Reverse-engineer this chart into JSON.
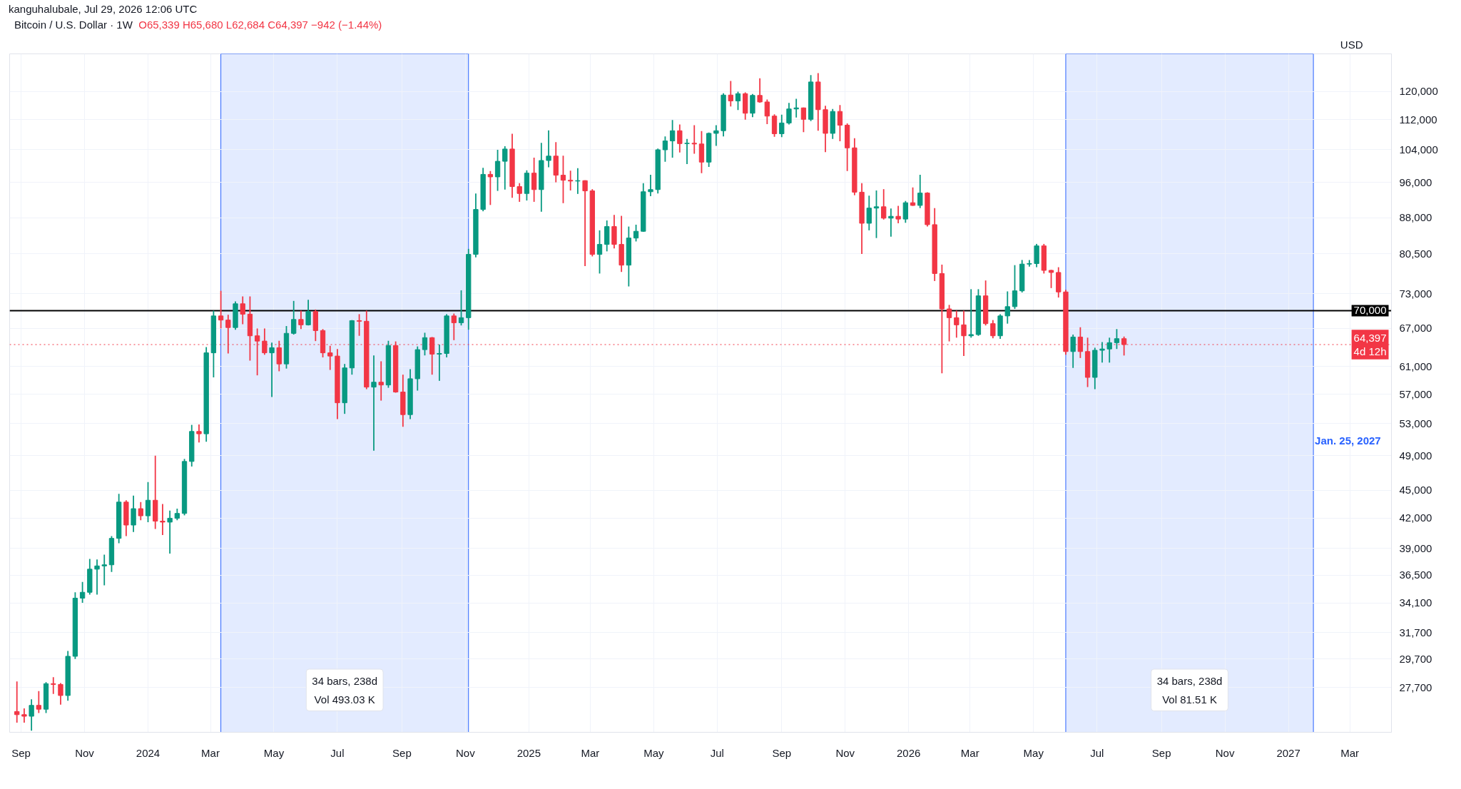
{
  "chart_data": {
    "type": "candlestick",
    "title": "Bitcoin / U.S. Dollar · 1W",
    "ylabel": "USD",
    "annotations": [
      "kanguhalubale, Jul 29, 2026 12:06 UTC",
      "O65,339 H65,680 L62,684 C64,397 −942 (−1.44%)",
      {
        "text": "Jan. 25, 2027",
        "x": "2027-01-25",
        "y": 52500
      }
    ],
    "x": [
      "2023-08-28",
      "2023-09-04",
      "2023-09-11",
      "2023-09-18",
      "2023-09-25",
      "2023-10-02",
      "2023-10-09",
      "2023-10-16",
      "2023-10-23",
      "2023-10-30",
      "2023-11-06",
      "2023-11-13",
      "2023-11-20",
      "2023-11-27",
      "2023-12-04",
      "2023-12-11",
      "2023-12-18",
      "2023-12-25",
      "2024-01-01",
      "2024-01-08",
      "2024-01-15",
      "2024-01-22",
      "2024-01-29",
      "2024-02-05",
      "2024-02-12",
      "2024-02-19",
      "2024-02-26",
      "2024-03-04",
      "2024-03-11",
      "2024-03-18",
      "2024-03-25",
      "2024-04-01",
      "2024-04-08",
      "2024-04-15",
      "2024-04-22",
      "2024-04-29",
      "2024-05-06",
      "2024-05-13",
      "2024-05-20",
      "2024-05-27",
      "2024-06-03",
      "2024-06-10",
      "2024-06-17",
      "2024-06-24",
      "2024-07-01",
      "2024-07-08",
      "2024-07-15",
      "2024-07-22",
      "2024-07-29",
      "2024-08-05",
      "2024-08-12",
      "2024-08-19",
      "2024-08-26",
      "2024-09-02",
      "2024-09-09",
      "2024-09-16",
      "2024-09-23",
      "2024-09-30",
      "2024-10-07",
      "2024-10-14",
      "2024-10-21",
      "2024-10-28",
      "2024-11-04",
      "2024-11-11",
      "2024-11-18",
      "2024-11-25",
      "2024-12-02",
      "2024-12-09",
      "2024-12-16",
      "2024-12-23",
      "2024-12-30",
      "2025-01-06",
      "2025-01-13",
      "2025-01-20",
      "2025-01-27",
      "2025-02-03",
      "2025-02-10",
      "2025-02-17",
      "2025-02-24",
      "2025-03-03",
      "2025-03-10",
      "2025-03-17",
      "2025-03-24",
      "2025-03-31",
      "2025-04-07",
      "2025-04-14",
      "2025-04-21",
      "2025-04-28",
      "2025-05-05",
      "2025-05-12",
      "2025-05-19",
      "2025-05-26",
      "2025-06-02",
      "2025-06-09",
      "2025-06-16",
      "2025-06-23",
      "2025-06-30",
      "2025-07-07",
      "2025-07-14",
      "2025-07-21",
      "2025-07-28",
      "2025-08-04",
      "2025-08-11",
      "2025-08-18",
      "2025-08-25",
      "2025-09-01",
      "2025-09-08",
      "2025-09-15",
      "2025-09-22",
      "2025-09-29",
      "2025-10-06",
      "2025-10-13",
      "2025-10-20",
      "2025-10-27",
      "2025-11-03",
      "2025-11-10",
      "2025-11-17",
      "2025-11-24",
      "2025-12-01",
      "2025-12-08",
      "2025-12-15",
      "2025-12-22",
      "2025-12-29",
      "2026-01-05",
      "2026-01-12",
      "2026-01-19",
      "2026-01-26",
      "2026-02-02",
      "2026-02-09",
      "2026-02-16",
      "2026-02-23",
      "2026-03-02",
      "2026-03-09",
      "2026-03-16",
      "2026-03-23",
      "2026-03-30",
      "2026-04-06",
      "2026-04-13",
      "2026-04-20",
      "2026-04-27",
      "2026-05-04",
      "2026-05-11",
      "2026-05-18",
      "2026-05-25",
      "2026-06-01",
      "2026-06-08",
      "2026-06-15",
      "2026-06-22",
      "2026-06-29",
      "2026-07-06",
      "2026-07-13",
      "2026-07-20",
      "2026-07-27"
    ],
    "ohlc": [
      [
        26100,
        28100,
        25400,
        25900
      ],
      [
        25900,
        26300,
        25400,
        25800
      ],
      [
        25800,
        26900,
        24900,
        26500
      ],
      [
        26500,
        27450,
        26000,
        26250
      ],
      [
        26250,
        28050,
        26000,
        27950
      ],
      [
        27950,
        28400,
        27250,
        27900
      ],
      [
        27900,
        28000,
        26550,
        27150
      ],
      [
        27150,
        30300,
        26800,
        29900
      ],
      [
        29900,
        35000,
        29700,
        34500
      ],
      [
        34500,
        35900,
        34100,
        35000
      ],
      [
        35000,
        38000,
        34800,
        37050
      ],
      [
        37050,
        37950,
        34800,
        37350
      ],
      [
        37350,
        38400,
        35600,
        37450
      ],
      [
        37450,
        40200,
        36800,
        39970
      ],
      [
        39970,
        44600,
        39500,
        43700
      ],
      [
        43700,
        43900,
        40200,
        41300
      ],
      [
        41300,
        44400,
        40600,
        43000
      ],
      [
        43000,
        43700,
        41800,
        42250
      ],
      [
        42250,
        45900,
        41600,
        43900
      ],
      [
        43900,
        49000,
        40900,
        41700
      ],
      [
        41700,
        43500,
        40300,
        41600
      ],
      [
        41600,
        42800,
        38500,
        42000
      ],
      [
        42000,
        43000,
        41800,
        42500
      ],
      [
        42500,
        48600,
        42300,
        48300
      ],
      [
        48300,
        52850,
        47700,
        52000
      ],
      [
        52000,
        52900,
        50600,
        51700
      ],
      [
        51700,
        64000,
        50700,
        63100
      ],
      [
        63100,
        70000,
        59400,
        69100
      ],
      [
        69100,
        73500,
        67000,
        68400
      ],
      [
        68400,
        69300,
        63000,
        67150
      ],
      [
        67150,
        71600,
        66800,
        71200
      ],
      [
        71200,
        72500,
        67700,
        69400
      ],
      [
        69400,
        72500,
        61900,
        65800
      ],
      [
        65800,
        67000,
        59700,
        64950
      ],
      [
        64950,
        67000,
        62800,
        63100
      ],
      [
        63100,
        64700,
        56600,
        63900
      ],
      [
        63900,
        65000,
        60300,
        61400
      ],
      [
        61400,
        67400,
        60700,
        66200
      ],
      [
        66200,
        71700,
        66000,
        68500
      ],
      [
        68500,
        70000,
        66900,
        67600
      ],
      [
        67600,
        71900,
        67500,
        69850
      ],
      [
        69850,
        70200,
        64950,
        66650
      ],
      [
        66650,
        66900,
        62400,
        63100
      ],
      [
        63100,
        64200,
        60500,
        62600
      ],
      [
        62600,
        63700,
        53600,
        55800
      ],
      [
        55800,
        61400,
        54300,
        60800
      ],
      [
        60800,
        68400,
        59800,
        68300
      ],
      [
        68300,
        69400,
        65800,
        68200
      ],
      [
        68200,
        70000,
        57700,
        58000
      ],
      [
        58000,
        62700,
        49600,
        58700
      ],
      [
        58700,
        61800,
        56100,
        58300
      ],
      [
        58300,
        65000,
        57900,
        64250
      ],
      [
        64250,
        64900,
        57200,
        57300
      ],
      [
        57300,
        59800,
        52600,
        54200
      ],
      [
        54200,
        60600,
        53600,
        59200
      ],
      [
        59200,
        64100,
        57500,
        63600
      ],
      [
        63600,
        66300,
        62700,
        65500
      ],
      [
        65500,
        65600,
        59800,
        62900
      ],
      [
        62900,
        64400,
        58900,
        63000
      ],
      [
        63000,
        69400,
        62400,
        69100
      ],
      [
        69100,
        69500,
        65100,
        67950
      ],
      [
        67950,
        73600,
        67500,
        68800
      ],
      [
        68800,
        81500,
        66800,
        80400
      ],
      [
        80400,
        93400,
        79800,
        89800
      ],
      [
        89800,
        99500,
        89400,
        97900
      ],
      [
        97900,
        98700,
        90800,
        97300
      ],
      [
        97300,
        104000,
        94000,
        101100
      ],
      [
        101100,
        104900,
        94300,
        104200
      ],
      [
        104200,
        108200,
        92400,
        95000
      ],
      [
        95000,
        95800,
        91500,
        93400
      ],
      [
        93400,
        98900,
        91800,
        98200
      ],
      [
        98200,
        102000,
        91500,
        94300
      ],
      [
        94300,
        105800,
        89300,
        101300
      ],
      [
        101300,
        109100,
        99600,
        102400
      ],
      [
        102400,
        106000,
        96000,
        97700
      ],
      [
        97700,
        102500,
        91200,
        96500
      ],
      [
        96500,
        98800,
        94100,
        96300
      ],
      [
        96300,
        99400,
        93300,
        96400
      ],
      [
        96400,
        96500,
        78100,
        94000
      ],
      [
        94000,
        94400,
        80000,
        80400
      ],
      [
        80400,
        85300,
        76700,
        82400
      ],
      [
        82400,
        87400,
        81000,
        86100
      ],
      [
        86100,
        88600,
        81600,
        82400
      ],
      [
        82400,
        88400,
        77000,
        78300
      ],
      [
        78300,
        86100,
        74300,
        83700
      ],
      [
        83700,
        86500,
        83000,
        85100
      ],
      [
        85100,
        95800,
        85000,
        93800
      ],
      [
        93800,
        97800,
        92800,
        94300
      ],
      [
        94300,
        104300,
        93400,
        104000
      ],
      [
        104000,
        107500,
        101000,
        106300
      ],
      [
        106300,
        111900,
        102000,
        109000
      ],
      [
        109000,
        110700,
        103300,
        105600
      ],
      [
        105600,
        106800,
        100400,
        105700
      ],
      [
        105700,
        110500,
        103000,
        105500
      ],
      [
        105500,
        108900,
        98200,
        100900
      ],
      [
        100900,
        108500,
        99700,
        108300
      ],
      [
        108300,
        110500,
        105000,
        109000
      ],
      [
        109000,
        119500,
        107500,
        119000
      ],
      [
        119000,
        123200,
        115700,
        117300
      ],
      [
        117300,
        120000,
        114700,
        119400
      ],
      [
        119400,
        119800,
        112000,
        113800
      ],
      [
        113800,
        119300,
        112700,
        118900
      ],
      [
        118900,
        124000,
        116800,
        117000
      ],
      [
        117000,
        117700,
        110800,
        113000
      ],
      [
        113000,
        113500,
        107400,
        108200
      ],
      [
        108200,
        113400,
        107300,
        111100
      ],
      [
        111100,
        116700,
        110700,
        115000
      ],
      [
        115000,
        117900,
        112600,
        115300
      ],
      [
        115300,
        115400,
        108600,
        112100
      ],
      [
        112100,
        125000,
        111600,
        122900
      ],
      [
        122900,
        125600,
        109000,
        114800
      ],
      [
        114800,
        115900,
        103400,
        108300
      ],
      [
        108300,
        115000,
        106800,
        114300
      ],
      [
        114300,
        116100,
        106200,
        110500
      ],
      [
        110500,
        111000,
        98700,
        104500
      ],
      [
        104500,
        107000,
        93000,
        93700
      ],
      [
        93700,
        95800,
        80500,
        86800
      ],
      [
        86800,
        92900,
        85300,
        90100
      ],
      [
        90100,
        94100,
        83700,
        90400
      ],
      [
        90400,
        94400,
        87600,
        87900
      ],
      [
        87900,
        90000,
        84000,
        88300
      ],
      [
        88300,
        90600,
        86800,
        87700
      ],
      [
        87700,
        91700,
        86900,
        91300
      ],
      [
        91300,
        94800,
        90600,
        90700
      ],
      [
        90700,
        97800,
        90100,
        93500
      ],
      [
        93500,
        93700,
        86100,
        86500
      ],
      [
        86500,
        90100,
        75300,
        76700
      ],
      [
        76700,
        78400,
        60000,
        70300
      ],
      [
        70300,
        71000,
        64900,
        68800
      ],
      [
        68800,
        70000,
        65500,
        67600
      ],
      [
        67600,
        70000,
        62600,
        65800
      ],
      [
        65800,
        73800,
        65500,
        66000
      ],
      [
        66000,
        73800,
        65800,
        72600
      ],
      [
        72600,
        75400,
        67500,
        67800
      ],
      [
        67800,
        68400,
        65400,
        65800
      ],
      [
        65800,
        69400,
        65300,
        69100
      ],
      [
        69100,
        73400,
        67800,
        70700
      ],
      [
        70700,
        78300,
        70300,
        73500
      ],
      [
        73500,
        79300,
        73200,
        78500
      ],
      [
        78500,
        79300,
        78000,
        78600
      ],
      [
        78600,
        82500,
        77900,
        82100
      ],
      [
        82100,
        82500,
        76700,
        77300
      ],
      [
        77300,
        77400,
        74000,
        76900
      ],
      [
        76900,
        77900,
        72300,
        73300
      ],
      [
        73300,
        73700,
        62800,
        63300
      ],
      [
        63300,
        66000,
        60800,
        65600
      ],
      [
        65600,
        67200,
        62300,
        63300
      ],
      [
        63300,
        65500,
        58000,
        59400
      ],
      [
        59400,
        63900,
        57700,
        63500
      ],
      [
        63500,
        64800,
        61600,
        63700
      ],
      [
        63700,
        65500,
        61600,
        64700
      ],
      [
        64700,
        66900,
        63700,
        65339
      ],
      [
        65339,
        65680,
        62684,
        64397
      ]
    ],
    "colors": [
      "#f23645",
      "#f23645",
      "#089981",
      "#f23645",
      "#089981",
      "#f23645",
      "#f23645",
      "#089981",
      "#089981",
      "#089981",
      "#089981",
      "#089981",
      "#089981",
      "#089981",
      "#089981",
      "#f23645",
      "#089981",
      "#f23645",
      "#089981",
      "#f23645",
      "#f23645",
      "#089981",
      "#089981",
      "#089981",
      "#089981",
      "#f23645",
      "#089981",
      "#089981",
      "#f23645",
      "#f23645",
      "#089981",
      "#f23645",
      "#f23645",
      "#f23645",
      "#f23645",
      "#089981",
      "#f23645",
      "#089981",
      "#089981",
      "#f23645",
      "#089981",
      "#f23645",
      "#f23645",
      "#f23645",
      "#f23645",
      "#089981",
      "#089981",
      "#f23645",
      "#f23645",
      "#089981",
      "#f23645",
      "#089981",
      "#f23645",
      "#f23645",
      "#089981",
      "#089981",
      "#089981",
      "#f23645",
      "#089981",
      "#089981",
      "#f23645",
      "#089981",
      "#089981",
      "#089981",
      "#089981",
      "#f23645",
      "#089981",
      "#089981",
      "#f23645",
      "#f23645",
      "#089981",
      "#f23645",
      "#089981",
      "#089981",
      "#f23645",
      "#f23645",
      "#f23645",
      "#089981",
      "#f23645",
      "#f23645",
      "#089981",
      "#089981",
      "#f23645",
      "#f23645",
      "#089981",
      "#089981",
      "#089981",
      "#089981",
      "#089981",
      "#089981",
      "#089981",
      "#f23645",
      "#089981",
      "#f23645",
      "#f23645",
      "#089981",
      "#089981",
      "#089981",
      "#f23645",
      "#089981",
      "#f23645",
      "#089981",
      "#f23645",
      "#f23645",
      "#f23645",
      "#089981",
      "#089981",
      "#089981",
      "#f23645",
      "#089981",
      "#f23645",
      "#f23645",
      "#089981",
      "#f23645",
      "#f23645",
      "#f23645",
      "#f23645",
      "#089981",
      "#089981",
      "#f23645",
      "#089981",
      "#f23645",
      "#089981",
      "#f23645",
      "#089981",
      "#f23645",
      "#f23645",
      "#f23645",
      "#f23645",
      "#f23645",
      "#f23645",
      "#089981",
      "#089981",
      "#f23645",
      "#f23645",
      "#089981",
      "#089981",
      "#089981",
      "#089981",
      "#089981",
      "#089981",
      "#f23645",
      "#f23645",
      "#f23645",
      "#f23645",
      "#089981",
      "#f23645",
      "#f23645",
      "#089981",
      "#089981",
      "#089981",
      "#089981",
      "#f23645"
    ],
    "log": "y",
    "ylim": [
      24800,
      131700
    ],
    "yticks": [
      {
        "value": 27700,
        "label": "27,700"
      },
      {
        "value": 29700,
        "label": "29,700"
      },
      {
        "value": 31700,
        "label": "31,700"
      },
      {
        "value": 34100,
        "label": "34,100"
      },
      {
        "value": 36500,
        "label": "36,500"
      },
      {
        "value": 39000,
        "label": "39,000"
      },
      {
        "value": 42000,
        "label": "42,000"
      },
      {
        "value": 45000,
        "label": "45,000"
      },
      {
        "value": 49000,
        "label": "49,000"
      },
      {
        "value": 53000,
        "label": "53,000"
      },
      {
        "value": 57000,
        "label": "57,000"
      },
      {
        "value": 61000,
        "label": "61,000"
      },
      {
        "value": 67000,
        "label": "67,000"
      },
      {
        "value": 73000,
        "label": "73,000"
      },
      {
        "value": 80500,
        "label": "80,500"
      },
      {
        "value": 88000,
        "label": "88,000"
      },
      {
        "value": 96000,
        "label": "96,000"
      },
      {
        "value": 104000,
        "label": "104,000"
      },
      {
        "value": 112000,
        "label": "112,000"
      },
      {
        "value": 120000,
        "label": "120,000"
      }
    ],
    "xlim": [
      "2023-08-21",
      "2027-04-10"
    ],
    "xticks": [
      {
        "value": "2023-09-01",
        "label": "Sep"
      },
      {
        "value": "2023-11-01",
        "label": "Nov"
      },
      {
        "value": "2024-01-01",
        "label": "2024"
      },
      {
        "value": "2024-03-01",
        "label": "Mar"
      },
      {
        "value": "2024-05-01",
        "label": "May"
      },
      {
        "value": "2024-07-01",
        "label": "Jul"
      },
      {
        "value": "2024-09-01",
        "label": "Sep"
      },
      {
        "value": "2024-11-01",
        "label": "Nov"
      },
      {
        "value": "2025-01-01",
        "label": "2025"
      },
      {
        "value": "2025-03-01",
        "label": "Mar"
      },
      {
        "value": "2025-05-01",
        "label": "May"
      },
      {
        "value": "2025-07-01",
        "label": "Jul"
      },
      {
        "value": "2025-09-01",
        "label": "Sep"
      },
      {
        "value": "2025-11-01",
        "label": "Nov"
      },
      {
        "value": "2026-01-01",
        "label": "2026"
      },
      {
        "value": "2026-03-01",
        "label": "Mar"
      },
      {
        "value": "2026-05-01",
        "label": "May"
      },
      {
        "value": "2026-07-01",
        "label": "Jul"
      },
      {
        "value": "2026-09-01",
        "label": "Sep"
      },
      {
        "value": "2026-11-01",
        "label": "Nov"
      },
      {
        "value": "2027-01-01",
        "label": "2027"
      },
      {
        "value": "2027-03-01",
        "label": "Mar"
      }
    ],
    "grid": true,
    "ref_lines": [
      {
        "axis": "y",
        "value": 70000,
        "label": "70,000",
        "color": "#000000",
        "line_style": "solid"
      },
      {
        "axis": "y",
        "value": 64397,
        "label": "64,397\n4d 12h",
        "color": "#f23645",
        "line_style": "dotted"
      }
    ],
    "bands": [
      {
        "axis": "x",
        "from": "2024-03-11",
        "to": "2024-11-04",
        "color": "#2962ff",
        "label": "34 bars, 238d\nVol 493.03 K"
      },
      {
        "axis": "x",
        "from": "2026-06-01",
        "to": "2027-01-25",
        "color": "#2962ff",
        "label": "34 bars, 238d\nVol 81.51 K"
      }
    ]
  }
}
